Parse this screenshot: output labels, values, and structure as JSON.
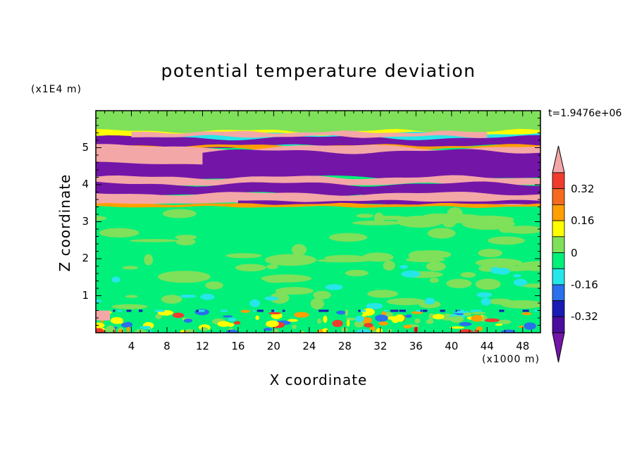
{
  "chart_data": {
    "type": "heatmap",
    "title": "potential temperature deviation",
    "xlabel": "X coordinate",
    "ylabel": "Z coordinate",
    "x_unit_label": "(x1000 m)",
    "y_unit_label": "(x1E4 m)",
    "time_label": "t=1.9476e+06",
    "xlim": [
      0,
      50
    ],
    "ylim": [
      0,
      6
    ],
    "x_ticks": [
      "4",
      "8",
      "12",
      "16",
      "20",
      "24",
      "28",
      "32",
      "36",
      "40",
      "44",
      "48"
    ],
    "y_ticks": [
      "1",
      "2",
      "3",
      "4",
      "5"
    ],
    "colorbar": {
      "tick_labels": [
        "0.32",
        "0.16",
        "0",
        "-0.16",
        "-0.32"
      ],
      "tick_values": [
        0.32,
        0.16,
        0,
        -0.16,
        -0.32
      ],
      "levels": [
        {
          "range": "> 0.40",
          "color": "#f4a7a7"
        },
        {
          "range": "0.32 to 0.40",
          "color": "#f03c2d"
        },
        {
          "range": "0.24 to 0.32",
          "color": "#f56a1e"
        },
        {
          "range": "0.16 to 0.24",
          "color": "#ff9f00"
        },
        {
          "range": "0.08 to 0.16",
          "color": "#ffff00"
        },
        {
          "range": "0 to 0.08",
          "color": "#7fe05a"
        },
        {
          "range": "-0.08 to 0",
          "color": "#00f07a"
        },
        {
          "range": "-0.16 to -0.08",
          "color": "#25e6e8"
        },
        {
          "range": "-0.24 to -0.16",
          "color": "#2a6fec"
        },
        {
          "range": "-0.32 to -0.24",
          "color": "#1a1ab4"
        },
        {
          "range": "-0.40 to -0.32",
          "color": "#4b0d9c"
        },
        {
          "range": "< -0.40",
          "color": "#7316a8"
        }
      ]
    },
    "bands": [
      {
        "z_from": 5.25,
        "z_to": 6.0,
        "level": "0 to 0.08",
        "note": "upper green layer"
      },
      {
        "z_from": 5.05,
        "z_to": 5.25,
        "level": "< -0.40"
      },
      {
        "z_from": 4.55,
        "z_to": 5.05,
        "level": "> 0.40"
      },
      {
        "z_from": 4.2,
        "z_to": 4.55,
        "level": "< -0.40"
      },
      {
        "z_from": 4.0,
        "z_to": 4.2,
        "level": "> 0.40"
      },
      {
        "z_from": 3.72,
        "z_to": 4.0,
        "level": "< -0.40"
      },
      {
        "z_from": 3.45,
        "z_to": 3.72,
        "level": "> 0.40"
      },
      {
        "z_from": 0.6,
        "z_to": 3.45,
        "level": "-0.08 to 0",
        "note": "mixed green layer with 0 to 0.08 patches"
      },
      {
        "z_from": 0.0,
        "z_to": 0.6,
        "level": "mixed",
        "note": "noisy surface layer"
      }
    ]
  }
}
